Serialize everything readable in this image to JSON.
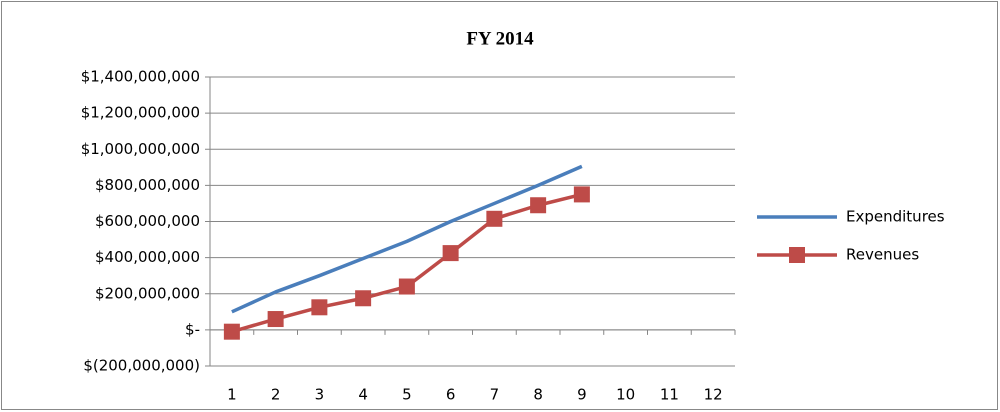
{
  "chart_data": {
    "type": "line",
    "title": "FY 2014",
    "categories": [
      "1",
      "2",
      "3",
      "4",
      "5",
      "6",
      "7",
      "8",
      "9",
      "10",
      "11",
      "12"
    ],
    "series": [
      {
        "name": "Expenditures",
        "color": "#4a7ebb",
        "values": [
          100000000,
          210000000,
          300000000,
          395000000,
          490000000,
          600000000,
          700000000,
          800000000,
          905000000,
          null,
          null,
          null
        ]
      },
      {
        "name": "Revenues",
        "color": "#be4b48",
        "marker": "square",
        "values": [
          -10000000,
          60000000,
          125000000,
          175000000,
          240000000,
          425000000,
          615000000,
          690000000,
          750000000,
          null,
          null,
          null
        ]
      }
    ],
    "ylim": [
      -200000000,
      1400000000
    ],
    "yticks": [
      {
        "value": -200000000,
        "label": "$(200,000,000)"
      },
      {
        "value": 0,
        "label": "$-"
      },
      {
        "value": 200000000,
        "label": "$200,000,000"
      },
      {
        "value": 400000000,
        "label": "$400,000,000"
      },
      {
        "value": 600000000,
        "label": "$600,000,000"
      },
      {
        "value": 800000000,
        "label": "$800,000,000"
      },
      {
        "value": 1000000000,
        "label": "$1,000,000,000"
      },
      {
        "value": 1200000000,
        "label": "$1,200,000,000"
      },
      {
        "value": 1400000000,
        "label": "$1,400,000,000"
      }
    ],
    "grid": true,
    "legend": "right"
  }
}
